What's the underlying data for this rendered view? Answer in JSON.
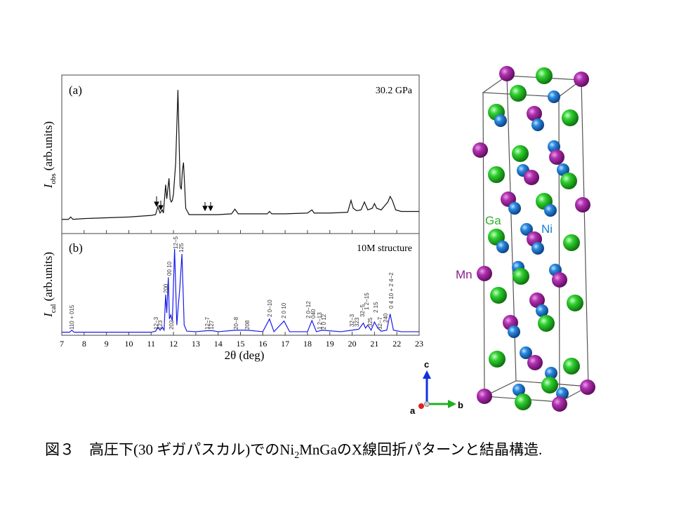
{
  "chart_data": [
    {
      "type": "line",
      "panel_label": "(a)",
      "annotation": "30.2 GPa",
      "y_label_main": "I",
      "y_label_sub": "obs",
      "y_label_unit": "(arb.units)",
      "x": [
        7,
        7.3,
        7.4,
        7.5,
        8,
        9,
        10,
        10.5,
        11,
        11.2,
        11.3,
        11.4,
        11.5,
        11.55,
        11.65,
        11.7,
        11.8,
        11.85,
        11.9,
        11.95,
        12.0,
        12.1,
        12.2,
        12.3,
        12.35,
        12.4,
        12.45,
        12.55,
        12.7,
        13,
        13.5,
        14,
        14.6,
        14.75,
        14.9,
        15.5,
        16.2,
        16.3,
        16.4,
        17,
        18,
        18.2,
        18.3,
        18.4,
        19,
        19.8,
        19.95,
        20.05,
        20.2,
        20.4,
        20.55,
        20.7,
        20.9,
        21.0,
        21.1,
        21.3,
        21.6,
        21.7,
        21.8,
        21.95,
        22.2,
        23
      ],
      "series": [
        {
          "color": "#111111",
          "values": [
            9,
            9,
            10.5,
            9,
            9.5,
            10,
            10.5,
            11,
            11.5,
            12,
            17,
            13,
            15,
            13,
            31,
            22,
            35,
            22,
            20,
            21,
            25,
            45,
            91,
            30,
            28,
            40,
            45,
            16,
            12,
            12,
            12,
            12,
            12.5,
            15.5,
            12.5,
            12.5,
            12.5,
            14,
            12.5,
            12.5,
            13,
            15,
            13,
            13,
            13,
            13.5,
            21,
            16,
            14.5,
            15,
            20,
            15,
            16,
            19,
            16,
            15,
            20,
            23.5,
            21,
            15,
            14,
            14
          ]
        }
      ],
      "xlim": [
        7,
        23
      ],
      "ylim": [
        0,
        100
      ]
    },
    {
      "type": "line",
      "panel_label": "(b)",
      "annotation": "10M structure",
      "y_label_main": "I",
      "y_label_sub": "cal",
      "y_label_unit": "(arb.units)",
      "x_label": "2θ (deg)",
      "x": [
        7,
        7.35,
        7.45,
        7.55,
        8,
        10,
        11,
        11.2,
        11.3,
        11.4,
        11.5,
        11.58,
        11.65,
        11.7,
        11.77,
        11.82,
        11.88,
        11.95,
        12.05,
        12.15,
        12.22,
        12.28,
        12.38,
        12.48,
        12.6,
        13,
        13.5,
        13.75,
        14,
        14.8,
        15.3,
        16,
        16.3,
        16.5,
        16.95,
        17.2,
        18,
        18.2,
        18.4,
        18.65,
        19.5,
        20.0,
        20.3,
        20.5,
        20.6,
        20.7,
        20.85,
        21.0,
        21.15,
        21.3,
        21.55,
        21.7,
        21.85,
        22.2,
        23
      ],
      "series": [
        {
          "color": "#1a1aee",
          "values": [
            3,
            3,
            5,
            3,
            3,
            3,
            3,
            4,
            8,
            5,
            8,
            5,
            40,
            22,
            57,
            16,
            20,
            14,
            85,
            10,
            30,
            45,
            80,
            10,
            4,
            3.5,
            4.5,
            4.5,
            3.5,
            5,
            5,
            3.5,
            16,
            3.5,
            14,
            3.5,
            3.5,
            14.5,
            3.5,
            5,
            3.5,
            5,
            6,
            12,
            7,
            10,
            5,
            13,
            7,
            4,
            5,
            21,
            5,
            3.5,
            3.5
          ]
        }
      ],
      "peak_labels": [
        "110 + 015",
        "12−3",
        "123",
        "200",
        "00 10",
        "202",
        "12−5",
        "125",
        "12−7",
        "127",
        "20−8",
        "208",
        "2 0−10",
        "2 0 10",
        "2 0−12",
        "040",
        "1 2−13",
        "2 0 12",
        "32−3",
        "323",
        "32−5",
        "1 2−15",
        "325",
        "2 15",
        "32−7",
        "240",
        "0 4 10 + 2 4−2"
      ],
      "xlim": [
        7,
        23
      ],
      "ylim": [
        0,
        100
      ],
      "xticks": [
        7,
        8,
        9,
        10,
        11,
        12,
        13,
        14,
        15,
        16,
        17,
        18,
        19,
        20,
        21,
        22,
        23
      ]
    }
  ],
  "structure": {
    "atom_labels": [
      "Ga",
      "Ni",
      "Mn"
    ],
    "axes": [
      "c",
      "a",
      "b"
    ]
  },
  "caption": {
    "prefix": "図３　高圧下(30 ギガパスカル)での",
    "formula_a": "Ni",
    "formula_sub": "2",
    "formula_b": "MnGa",
    "suffix": "のX線回折パターンと結晶構造."
  }
}
